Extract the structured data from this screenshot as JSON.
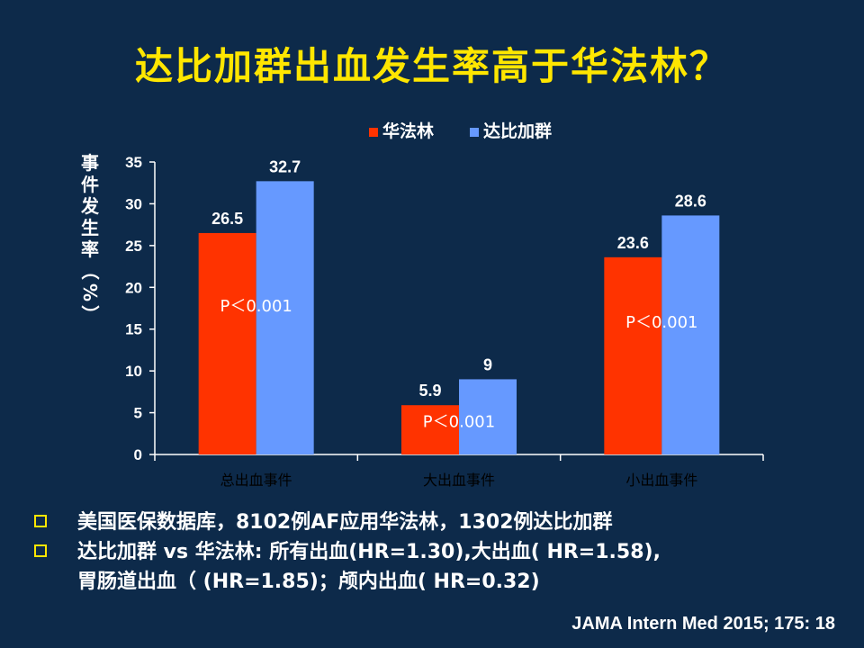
{
  "title": "达比加群出血发生率高于华法林？",
  "chart_data": {
    "type": "bar",
    "categories": [
      "总出血事件",
      "大出血事件",
      "小出血事件"
    ],
    "series": [
      {
        "name": "华法林",
        "values": [
          26.5,
          5.9,
          23.6
        ],
        "color": "#ff3300"
      },
      {
        "name": "达比加群",
        "values": [
          32.7,
          9,
          28.6
        ],
        "color": "#6699ff"
      }
    ],
    "data_labels": [
      [
        "26.5",
        "5.9",
        "23.6"
      ],
      [
        "32.7",
        "9",
        "28.6"
      ]
    ],
    "p_values": [
      "P＜0.001",
      "P＜0.001",
      "P＜0.001"
    ],
    "ylabel": "事件发生率（%）",
    "ylim": [
      0,
      35
    ],
    "yticks": [
      "0",
      "5",
      "10",
      "15",
      "20",
      "25",
      "30",
      "35"
    ],
    "legend_position": "top",
    "grid": false
  },
  "bullets": [
    {
      "lines": [
        "美国医保数据库，8102例AF应用华法林，1302例达比加群"
      ]
    },
    {
      "lines": [
        "达比加群 vs 华法林: 所有出血(HR=1.30),大出血( HR=1.58),",
        "胃肠道出血（ (HR=1.85)；颅内出血( HR=0.32)"
      ]
    }
  ],
  "citation": "JAMA Intern Med 2015; 175: 18"
}
